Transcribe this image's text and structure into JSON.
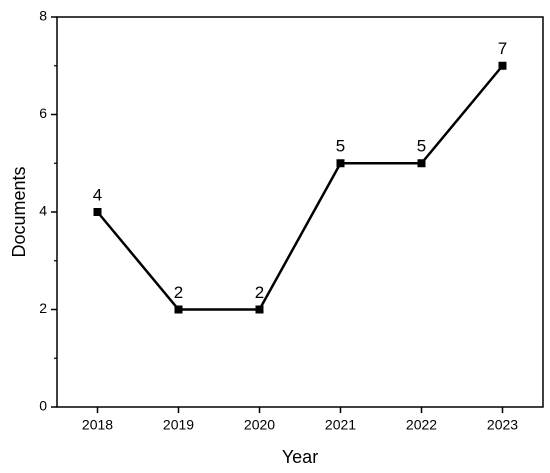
{
  "chart_data": {
    "type": "line",
    "x_label": "Year",
    "y_label": "Documents",
    "x": [
      2018,
      2019,
      2020,
      2021,
      2022,
      2023
    ],
    "series": [
      {
        "color": "#000000",
        "values": [
          4,
          2,
          2,
          5,
          5,
          7
        ]
      }
    ],
    "xlim": [
      2017.5,
      2023.5
    ],
    "xticks": [
      2018,
      2019,
      2020,
      2021,
      2022,
      2023
    ],
    "ylim": [
      0,
      8
    ],
    "yticks": [
      0,
      2,
      4,
      6,
      8
    ],
    "yminorticks": [
      1,
      3,
      5,
      7
    ],
    "marker": "square",
    "data_labels": true
  }
}
